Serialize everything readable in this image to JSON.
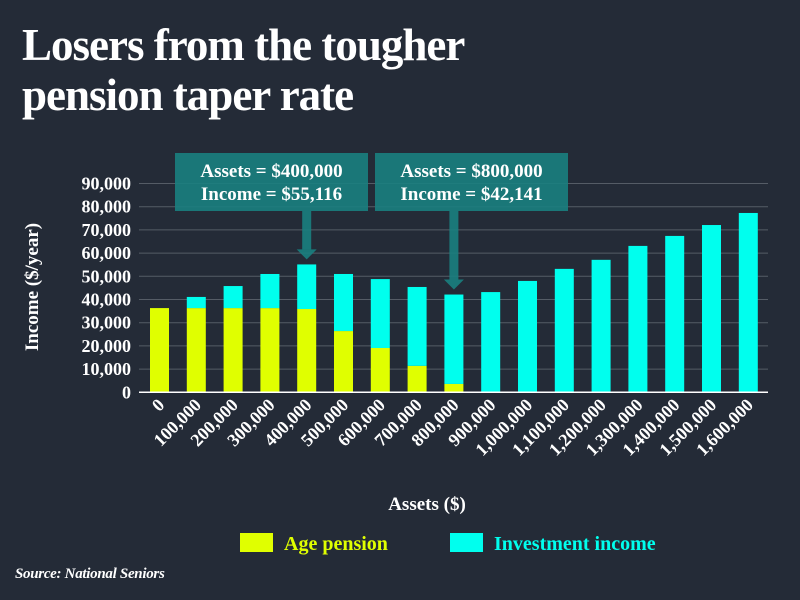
{
  "header": {
    "title_line1": "Losers from the tougher",
    "title_line2": "pension taper rate"
  },
  "footer": {
    "source": "Source: National Seniors"
  },
  "colors": {
    "background": "#242b37",
    "age_pension": "#e0ff00",
    "investment_income": "#00ffee",
    "callout": "#1a8080",
    "gridline": "#555c66",
    "text": "#ffffff"
  },
  "chart_data": {
    "type": "bar",
    "stacked": true,
    "title": "Losers from the tougher pension taper rate",
    "xlabel": "Assets ($)",
    "ylabel": "Income ($/year)",
    "ylim": [
      0,
      90000
    ],
    "yticks": [
      0,
      10000,
      20000,
      30000,
      40000,
      50000,
      60000,
      70000,
      80000,
      90000
    ],
    "ytick_labels": [
      "0",
      "10,000",
      "20,000",
      "30,000",
      "40,000",
      "50,000",
      "60,000",
      "70,000",
      "80,000",
      "90,000"
    ],
    "grid": true,
    "categories": [
      "0",
      "100,000",
      "200,000",
      "300,000",
      "400,000",
      "500,000",
      "600,000",
      "700,000",
      "800,000",
      "900,000",
      "1,000,000",
      "1,100,000",
      "1,200,000",
      "1,300,000",
      "1,400,000",
      "1,500,000",
      "1,600,000"
    ],
    "series": [
      {
        "name": "Age pension",
        "color": "#e0ff00",
        "values": [
          36300,
          36300,
          36300,
          36300,
          35900,
          26400,
          19100,
          11400,
          3600,
          0,
          0,
          0,
          0,
          0,
          0,
          0,
          0
        ]
      },
      {
        "name": "Investment income",
        "color": "#00ffee",
        "values": [
          0,
          4800,
          9500,
          14700,
          19216,
          24600,
          29700,
          34000,
          38541,
          43200,
          48000,
          53200,
          57100,
          63100,
          67400,
          72100,
          77300
        ]
      }
    ],
    "legend": {
      "position": "bottom",
      "entries": [
        "Age pension",
        "Investment income"
      ]
    },
    "annotations": [
      {
        "category_index": 4,
        "line1": "Assets = $400,000",
        "line2": "Income = $55,116",
        "total": 55116
      },
      {
        "category_index": 8,
        "line1": "Assets = $800,000",
        "line2": "Income = $42,141",
        "total": 42141
      }
    ]
  }
}
